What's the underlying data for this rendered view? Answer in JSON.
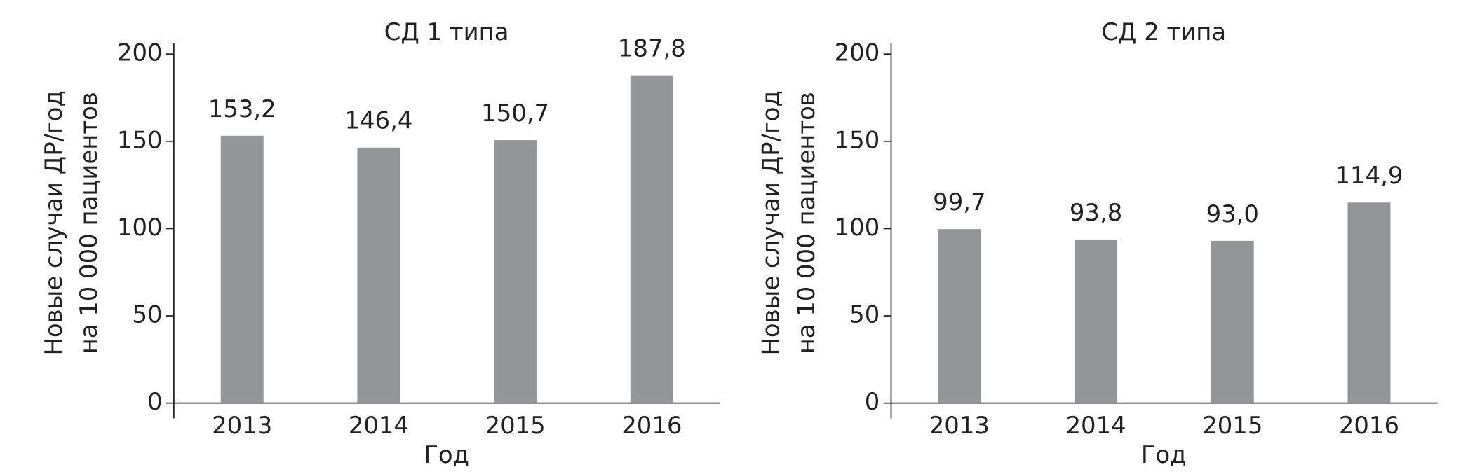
{
  "chart_data": [
    {
      "type": "bar",
      "title": "СД 1 типа",
      "xlabel": "Год",
      "ylabel": [
        "Новые случаи ДР/год",
        "на 10 000 пациентов"
      ],
      "categories": [
        "2013",
        "2014",
        "2015",
        "2016"
      ],
      "values": [
        153.2,
        146.4,
        150.7,
        187.8
      ],
      "value_labels": [
        "153,2",
        "146,4",
        "150,7",
        "187,8"
      ],
      "color": "#939598",
      "ylim": [
        0,
        200
      ],
      "yticks": [
        0,
        50,
        100,
        150,
        200
      ],
      "grid": false
    },
    {
      "type": "bar",
      "title": "СД 2 типа",
      "xlabel": "Год",
      "ylabel": [
        "Новые случаи ДР/год",
        "на 10 000 пациентов"
      ],
      "categories": [
        "2013",
        "2014",
        "2015",
        "2016"
      ],
      "values": [
        99.7,
        93.8,
        93.0,
        114.9
      ],
      "value_labels": [
        "99,7",
        "93,8",
        "93,0",
        "114,9"
      ],
      "color": "#939598",
      "ylim": [
        0,
        200
      ],
      "yticks": [
        0,
        50,
        100,
        150,
        200
      ],
      "grid": false
    }
  ]
}
